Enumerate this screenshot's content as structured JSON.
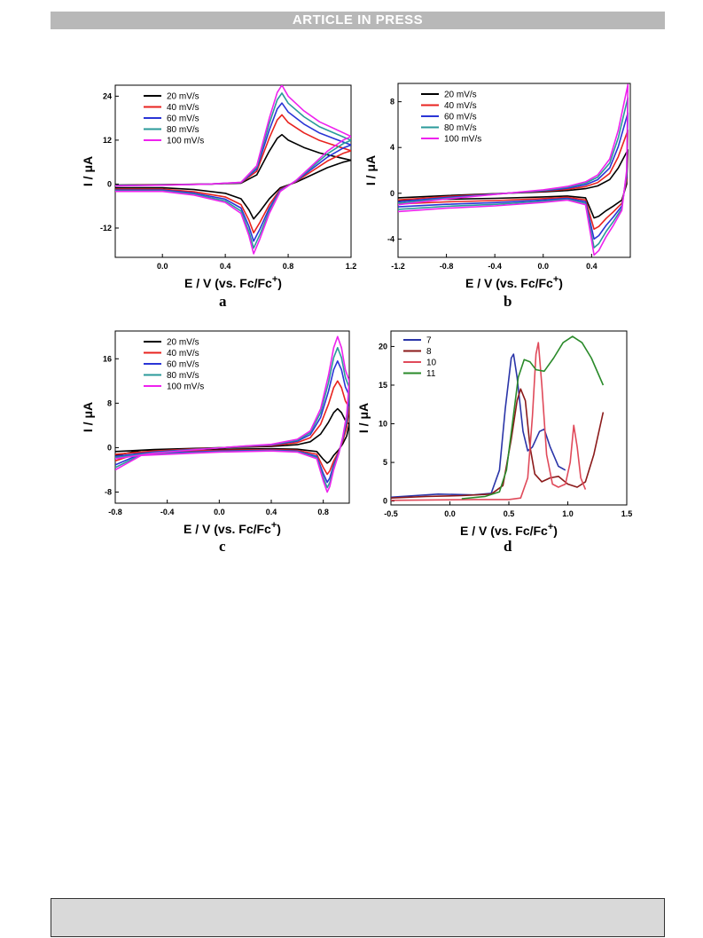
{
  "banner": "ARTICLE IN PRESS",
  "chart_data": [
    {
      "id": "a",
      "type": "line",
      "panel_label": "a",
      "xlabel": "E / V (vs. Fc/Fc",
      "xlabel_sup": "+",
      "ylabel": "I / μA",
      "xlim": [
        -0.3,
        1.2
      ],
      "ylim": [
        -20,
        27
      ],
      "xticks": [
        0.0,
        0.4,
        0.8,
        1.2
      ],
      "xticklabels": [
        "0.0",
        "0.4",
        "0.8",
        "1.2"
      ],
      "yticks": [
        -12,
        0,
        12,
        24
      ],
      "yticklabels": [
        "-12",
        "0",
        "12",
        "24"
      ],
      "legend": "top-left",
      "grid": false,
      "series": [
        {
          "name": "20 mV/s",
          "color": "#000000",
          "scale": 0.5
        },
        {
          "name": "40 mV/s",
          "color": "#e8231f",
          "scale": 0.7
        },
        {
          "name": "60 mV/s",
          "color": "#2a35d6",
          "scale": 0.82
        },
        {
          "name": "80 mV/s",
          "color": "#2a9a9a",
          "scale": 0.92
        },
        {
          "name": "100 mV/s",
          "color": "#ee22ee",
          "scale": 1.0
        }
      ],
      "shape": {
        "fwd": [
          [
            -0.3,
            -0.5
          ],
          [
            0.0,
            -0.3
          ],
          [
            0.3,
            0.0
          ],
          [
            0.5,
            0.5
          ],
          [
            0.6,
            5
          ],
          [
            0.68,
            18
          ],
          [
            0.73,
            25
          ],
          [
            0.76,
            27
          ],
          [
            0.8,
            24
          ],
          [
            0.9,
            20
          ],
          [
            1.0,
            17
          ],
          [
            1.1,
            15
          ],
          [
            1.2,
            13
          ]
        ],
        "rev": [
          [
            1.2,
            13
          ],
          [
            1.15,
            12
          ],
          [
            1.05,
            9
          ],
          [
            0.95,
            5
          ],
          [
            0.85,
            1
          ],
          [
            0.75,
            -2
          ],
          [
            0.68,
            -8
          ],
          [
            0.62,
            -15
          ],
          [
            0.58,
            -19
          ],
          [
            0.55,
            -14
          ],
          [
            0.5,
            -8
          ],
          [
            0.4,
            -5
          ],
          [
            0.2,
            -3
          ],
          [
            0.0,
            -2
          ],
          [
            -0.3,
            -2
          ]
        ]
      }
    },
    {
      "id": "b",
      "type": "line",
      "panel_label": "b",
      "xlabel": "E / V (vs. Fc/Fc",
      "xlabel_sup": "+",
      "ylabel": "I / μA",
      "xlim": [
        -1.2,
        0.72
      ],
      "ylim": [
        -5.6,
        9.6
      ],
      "xticks": [
        -1.2,
        -0.8,
        -0.4,
        0.0,
        0.4
      ],
      "xticklabels": [
        "-1.2",
        "-0.8",
        "-0.4",
        "0.0",
        "0.4"
      ],
      "yticks": [
        -4,
        0,
        4,
        8
      ],
      "yticklabels": [
        "-4",
        "0",
        "4",
        "8"
      ],
      "legend": "top-left",
      "grid": false,
      "series": [
        {
          "name": "20 mV/s",
          "color": "#000000",
          "scale": 0.4
        },
        {
          "name": "40 mV/s",
          "color": "#e8231f",
          "scale": 0.58
        },
        {
          "name": "60 mV/s",
          "color": "#2a35d6",
          "scale": 0.74
        },
        {
          "name": "80 mV/s",
          "color": "#2a9a9a",
          "scale": 0.88
        },
        {
          "name": "100 mV/s",
          "color": "#ee22ee",
          "scale": 1.0
        }
      ],
      "shape": {
        "fwd": [
          [
            -1.2,
            -1.0
          ],
          [
            -0.8,
            -0.5
          ],
          [
            -0.4,
            -0.1
          ],
          [
            0.0,
            0.3
          ],
          [
            0.2,
            0.6
          ],
          [
            0.35,
            1.0
          ],
          [
            0.45,
            1.6
          ],
          [
            0.55,
            3.0
          ],
          [
            0.62,
            5.5
          ],
          [
            0.67,
            8
          ],
          [
            0.7,
            9.5
          ]
        ],
        "rev": [
          [
            0.7,
            9.5
          ],
          [
            0.69,
            2
          ],
          [
            0.65,
            -1.5
          ],
          [
            0.58,
            -2.8
          ],
          [
            0.52,
            -3.8
          ],
          [
            0.46,
            -5.0
          ],
          [
            0.42,
            -5.4
          ],
          [
            0.39,
            -3.5
          ],
          [
            0.35,
            -1.0
          ],
          [
            0.2,
            -0.6
          ],
          [
            0.0,
            -0.8
          ],
          [
            -0.4,
            -1.1
          ],
          [
            -0.8,
            -1.3
          ],
          [
            -1.2,
            -1.6
          ]
        ]
      }
    },
    {
      "id": "c",
      "type": "line",
      "panel_label": "c",
      "xlabel": "E / V (vs. Fc/Fc",
      "xlabel_sup": "+",
      "ylabel": "I / μA",
      "xlim": [
        -0.8,
        1.0
      ],
      "ylim": [
        -10,
        21
      ],
      "xticks": [
        -0.8,
        -0.4,
        0.0,
        0.4,
        0.8
      ],
      "xticklabels": [
        "-0.8",
        "-0.4",
        "0.0",
        "0.4",
        "0.8"
      ],
      "yticks": [
        -8,
        0,
        8,
        16
      ],
      "yticklabels": [
        "-8",
        "0",
        "8",
        "16"
      ],
      "legend": "top-left",
      "grid": false,
      "series": [
        {
          "name": "20 mV/s",
          "color": "#000000",
          "scale": 0.35
        },
        {
          "name": "40 mV/s",
          "color": "#e8231f",
          "scale": 0.6
        },
        {
          "name": "60 mV/s",
          "color": "#2a35d6",
          "scale": 0.78
        },
        {
          "name": "80 mV/s",
          "color": "#2a9a9a",
          "scale": 0.9
        },
        {
          "name": "100 mV/s",
          "color": "#ee22ee",
          "scale": 1.0
        }
      ],
      "shape": {
        "fwd": [
          [
            -0.8,
            -2
          ],
          [
            -0.5,
            -1
          ],
          [
            -0.2,
            -0.4
          ],
          [
            0.2,
            0.3
          ],
          [
            0.4,
            0.6
          ],
          [
            0.6,
            1.5
          ],
          [
            0.7,
            3
          ],
          [
            0.78,
            7
          ],
          [
            0.84,
            13
          ],
          [
            0.88,
            18
          ],
          [
            0.91,
            20
          ],
          [
            0.94,
            18
          ],
          [
            0.97,
            14
          ],
          [
            1.0,
            12
          ]
        ],
        "rev": [
          [
            1.0,
            12
          ],
          [
            0.98,
            6
          ],
          [
            0.95,
            2
          ],
          [
            0.92,
            -1
          ],
          [
            0.88,
            -4
          ],
          [
            0.85,
            -7
          ],
          [
            0.83,
            -8
          ],
          [
            0.8,
            -6
          ],
          [
            0.75,
            -2
          ],
          [
            0.6,
            -0.8
          ],
          [
            0.4,
            -0.6
          ],
          [
            0.0,
            -0.8
          ],
          [
            -0.4,
            -1.2
          ],
          [
            -0.6,
            -1.4
          ],
          [
            -0.8,
            -4
          ]
        ]
      }
    },
    {
      "id": "d",
      "type": "line",
      "panel_label": "d",
      "xlabel": "E / V (vs. Fc/Fc",
      "xlabel_sup": "+",
      "ylabel": "I / μA",
      "xlim": [
        -0.5,
        1.5
      ],
      "ylim": [
        -0.5,
        22
      ],
      "xticks": [
        -0.5,
        0.0,
        0.5,
        1.0,
        1.5
      ],
      "xticklabels": [
        "-0.5",
        "0.0",
        "0.5",
        "1.0",
        "1.5"
      ],
      "yticks": [
        0,
        5,
        10,
        15,
        20
      ],
      "yticklabels": [
        "0",
        "5",
        "10",
        "15",
        "20"
      ],
      "legend": "top-left",
      "grid": false,
      "series": [
        {
          "name": "7",
          "color": "#2a35a8",
          "points": [
            [
              -0.5,
              0.5
            ],
            [
              -0.3,
              0.7
            ],
            [
              -0.1,
              0.9
            ],
            [
              0.2,
              0.8
            ],
            [
              0.35,
              1.0
            ],
            [
              0.42,
              4
            ],
            [
              0.47,
              12
            ],
            [
              0.52,
              18.5
            ],
            [
              0.54,
              19
            ],
            [
              0.57,
              16
            ],
            [
              0.62,
              9
            ],
            [
              0.66,
              6.5
            ],
            [
              0.7,
              7
            ],
            [
              0.76,
              9
            ],
            [
              0.8,
              9.3
            ],
            [
              0.85,
              7
            ],
            [
              0.92,
              4.5
            ],
            [
              0.98,
              4
            ]
          ]
        },
        {
          "name": "8",
          "color": "#8b1a1a",
          "points": [
            [
              -0.5,
              0.4
            ],
            [
              -0.2,
              0.6
            ],
            [
              0.1,
              0.7
            ],
            [
              0.35,
              0.9
            ],
            [
              0.45,
              2
            ],
            [
              0.52,
              8
            ],
            [
              0.57,
              13
            ],
            [
              0.6,
              14.5
            ],
            [
              0.64,
              13
            ],
            [
              0.68,
              7
            ],
            [
              0.72,
              3.5
            ],
            [
              0.78,
              2.5
            ],
            [
              0.85,
              3.0
            ],
            [
              0.92,
              3.2
            ],
            [
              1.0,
              2.2
            ],
            [
              1.08,
              1.8
            ],
            [
              1.15,
              2.5
            ],
            [
              1.22,
              6
            ],
            [
              1.3,
              11.5
            ]
          ]
        },
        {
          "name": "10",
          "color": "#e04a5a",
          "points": [
            [
              -0.5,
              0.1
            ],
            [
              0.2,
              0.2
            ],
            [
              0.5,
              0.2
            ],
            [
              0.6,
              0.4
            ],
            [
              0.66,
              3
            ],
            [
              0.7,
              11
            ],
            [
              0.73,
              19
            ],
            [
              0.75,
              20.5
            ],
            [
              0.78,
              15
            ],
            [
              0.82,
              6
            ],
            [
              0.87,
              2.2
            ],
            [
              0.92,
              1.8
            ],
            [
              0.98,
              2.2
            ],
            [
              1.02,
              5
            ],
            [
              1.05,
              9.8
            ],
            [
              1.08,
              7
            ],
            [
              1.11,
              3
            ],
            [
              1.15,
              1.5
            ]
          ]
        },
        {
          "name": "11",
          "color": "#2a8a2a",
          "points": [
            [
              0.1,
              0.3
            ],
            [
              0.3,
              0.6
            ],
            [
              0.42,
              1.2
            ],
            [
              0.48,
              4
            ],
            [
              0.53,
              10
            ],
            [
              0.58,
              16
            ],
            [
              0.63,
              18.3
            ],
            [
              0.68,
              18
            ],
            [
              0.73,
              17
            ],
            [
              0.8,
              16.8
            ],
            [
              0.88,
              18.5
            ],
            [
              0.96,
              20.5
            ],
            [
              1.04,
              21.3
            ],
            [
              1.12,
              20.5
            ],
            [
              1.2,
              18.5
            ],
            [
              1.3,
              15
            ]
          ]
        }
      ]
    }
  ]
}
